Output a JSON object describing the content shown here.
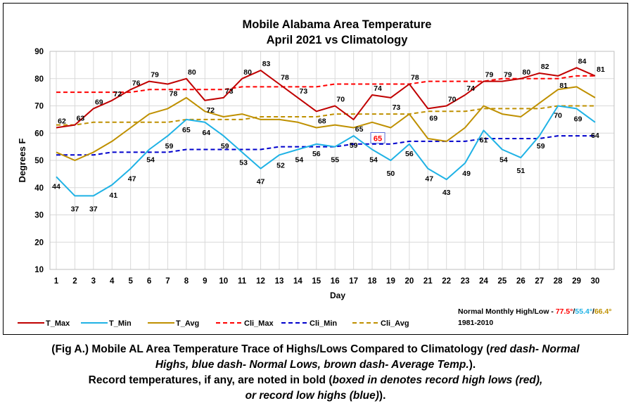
{
  "chart_data": {
    "type": "line",
    "title_line1": "Mobile Alabama Area Temperature",
    "title_line2": "April 2021 vs Climatology",
    "xlabel": "Day",
    "ylabel": "Degrees F",
    "ylim": [
      10,
      90
    ],
    "yticks": [
      "10",
      "20",
      "30",
      "40",
      "50",
      "60",
      "70",
      "80",
      "90"
    ],
    "grid": true,
    "x": [
      1,
      2,
      3,
      4,
      5,
      6,
      7,
      8,
      9,
      10,
      11,
      12,
      13,
      14,
      15,
      16,
      17,
      18,
      19,
      20,
      21,
      22,
      23,
      24,
      25,
      26,
      27,
      28,
      29,
      30
    ],
    "series": [
      {
        "name": "T_Max",
        "color": "#C00000",
        "dash": false,
        "labeled": true,
        "values": [
          62,
          63,
          69,
          72,
          76,
          79,
          78,
          80,
          72,
          73,
          80,
          83,
          78,
          73,
          68,
          70,
          65,
          74,
          73,
          78,
          69,
          70,
          74,
          79,
          79,
          80,
          82,
          81,
          84,
          81
        ]
      },
      {
        "name": "T_Min",
        "color": "#1FB2E5",
        "dash": false,
        "labeled": true,
        "values": [
          44,
          37,
          37,
          41,
          47,
          54,
          59,
          65,
          64,
          59,
          53,
          47,
          52,
          54,
          56,
          55,
          59,
          54,
          50,
          56,
          47,
          43,
          49,
          61,
          54,
          51,
          59,
          70,
          69,
          64
        ]
      },
      {
        "name": "T_Avg",
        "color": "#BF9000",
        "dash": false,
        "labeled": false,
        "values": [
          53,
          50,
          53,
          57,
          62,
          67,
          69,
          73,
          68,
          66,
          67,
          65,
          65,
          64,
          62,
          63,
          62,
          64,
          62,
          67,
          58,
          57,
          62,
          70,
          67,
          66,
          71,
          76,
          77,
          73
        ]
      },
      {
        "name": "Cli_Max",
        "color": "#FF0000",
        "dash": true,
        "labeled": false,
        "values": [
          75,
          75,
          75,
          75,
          75,
          76,
          76,
          76,
          76,
          76,
          77,
          77,
          77,
          77,
          77,
          78,
          78,
          78,
          78,
          78,
          79,
          79,
          79,
          79,
          80,
          80,
          80,
          80,
          81,
          81
        ]
      },
      {
        "name": "Cli_Min",
        "color": "#0000CC",
        "dash": true,
        "labeled": false,
        "values": [
          52,
          52,
          52,
          53,
          53,
          53,
          53,
          54,
          54,
          54,
          54,
          54,
          55,
          55,
          55,
          55,
          56,
          56,
          56,
          57,
          57,
          57,
          57,
          58,
          58,
          58,
          58,
          59,
          59,
          59
        ]
      },
      {
        "name": "Cli_Avg",
        "color": "#BF9000",
        "dash": true,
        "labeled": false,
        "values": [
          63,
          63,
          64,
          64,
          64,
          64,
          64,
          65,
          65,
          65,
          65,
          66,
          66,
          66,
          66,
          67,
          67,
          67,
          67,
          67,
          68,
          68,
          68,
          69,
          69,
          69,
          69,
          70,
          70,
          70
        ]
      }
    ],
    "max_labels": [
      "62",
      "63",
      "69",
      "72",
      "76",
      "79",
      "78",
      "80",
      "72",
      "73",
      "80",
      "83",
      "78",
      "73",
      "68",
      "70",
      "65",
      "74",
      "73",
      "78",
      "69",
      "70",
      "74",
      "79",
      "79",
      "80",
      "82",
      "81",
      "84",
      "81"
    ],
    "min_labels": [
      "44",
      "37",
      "37",
      "41",
      "47",
      "54",
      "59",
      "65",
      "64",
      "59",
      "53",
      "47",
      "52",
      "54",
      "56",
      "55",
      "59",
      "54",
      "50",
      "56",
      "47",
      "43",
      "49",
      "61",
      "54",
      "51",
      "59",
      "70",
      "69",
      "64"
    ],
    "record_marker": {
      "day": 18,
      "label": "65",
      "color": "#FF0000",
      "box_color": "#5B6FD6"
    },
    "legend_position": "bottom",
    "normal_label": "Normal Monthly High/Low - ",
    "normal_high": "77.5°",
    "normal_low": "55.4°",
    "normal_avg": "66.4°",
    "normal_sep": "/",
    "normal_period": "1981-2010",
    "normal_colors": {
      "high": "#FF0000",
      "low": "#1FB2E5",
      "avg": "#BF9000"
    }
  },
  "caption": {
    "line1_a": "(Fig A.) Mobile AL Area Temperature Trace of Highs/Lows Compared to Climatology (",
    "line1_b": "red dash- Normal",
    "line2_a": "Highs, blue dash- Normal Lows, brown dash- Average Temp.",
    "line2_b": ").",
    "line3_a": "Record temperatures, if any, are noted in bold (",
    "line3_b": "boxed in denotes record high lows (red),",
    "line4_a": "or record low highs (blue)",
    "line4_b": ")."
  }
}
